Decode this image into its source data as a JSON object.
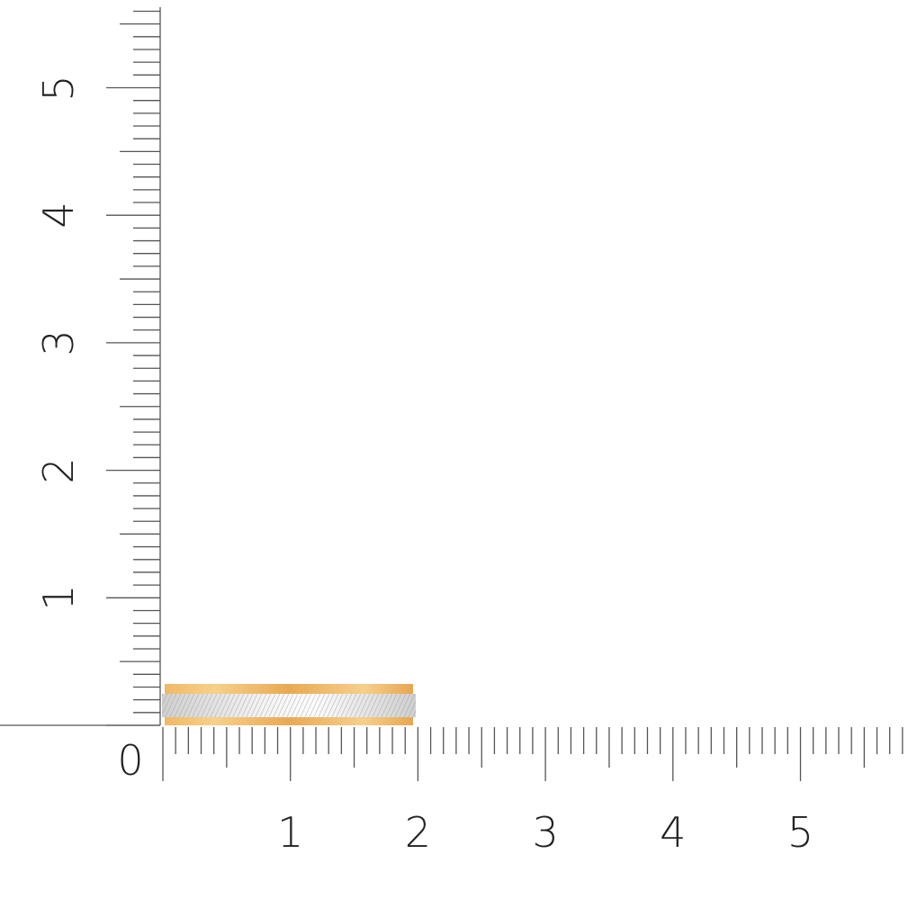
{
  "scale": {
    "unit_labels_x": [
      "1",
      "2",
      "3",
      "4",
      "5"
    ],
    "unit_labels_y": [
      "1",
      "2",
      "3",
      "4",
      "5"
    ],
    "origin_label": "0",
    "tick_color": "#555555"
  },
  "product": {
    "name_icon": "two-tone-ring-icon",
    "width_units": 2.0,
    "height_units": 0.32,
    "gold_color": "#f0b865",
    "silver_color": "#e8e8e8"
  }
}
